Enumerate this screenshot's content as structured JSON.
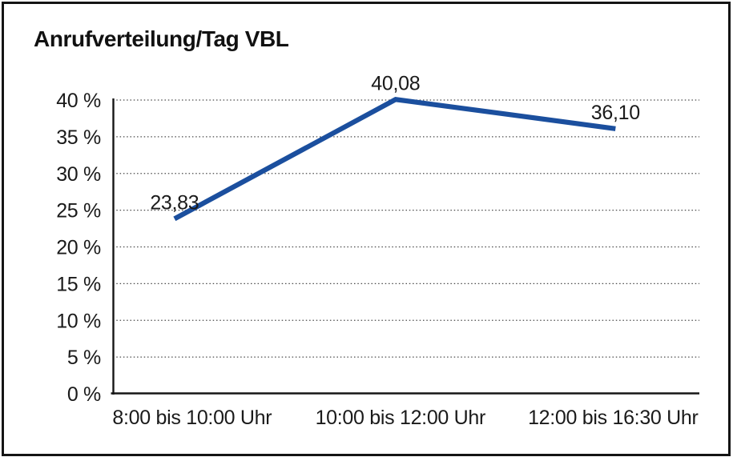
{
  "chart_data": {
    "type": "line",
    "title": "Anrufverteilung/Tag VBL",
    "categories": [
      "8:00 bis 10:00 Uhr",
      "10:00 bis 12:00 Uhr",
      "12:00 bis 16:30 Uhr"
    ],
    "series": [
      {
        "values": [
          23.83,
          40.08,
          36.1
        ],
        "point_labels": [
          "23,83",
          "40,08",
          "36,10"
        ],
        "color": "#1b4f9e"
      }
    ],
    "y_axis": {
      "range": [
        0,
        40
      ],
      "ticks": [
        {
          "value": 0,
          "label": "0 %"
        },
        {
          "value": 5,
          "label": "5 %"
        },
        {
          "value": 10,
          "label": "10 %"
        },
        {
          "value": 15,
          "label": "15 %"
        },
        {
          "value": 20,
          "label": "20 %"
        },
        {
          "value": 25,
          "label": "25 %"
        },
        {
          "value": 30,
          "label": "30 %"
        },
        {
          "value": 35,
          "label": "35 %"
        },
        {
          "value": 40,
          "label": "40 %"
        }
      ]
    },
    "xlabel": "",
    "ylabel": "",
    "grid": "horizontal-dotted",
    "legend": "none",
    "colors": {
      "line": "#1b4f9e",
      "axis": "#161616",
      "gridline": "#4a4a4a",
      "text": "#1a1a1a",
      "frame": "#141414",
      "background": "#ffffff"
    }
  }
}
